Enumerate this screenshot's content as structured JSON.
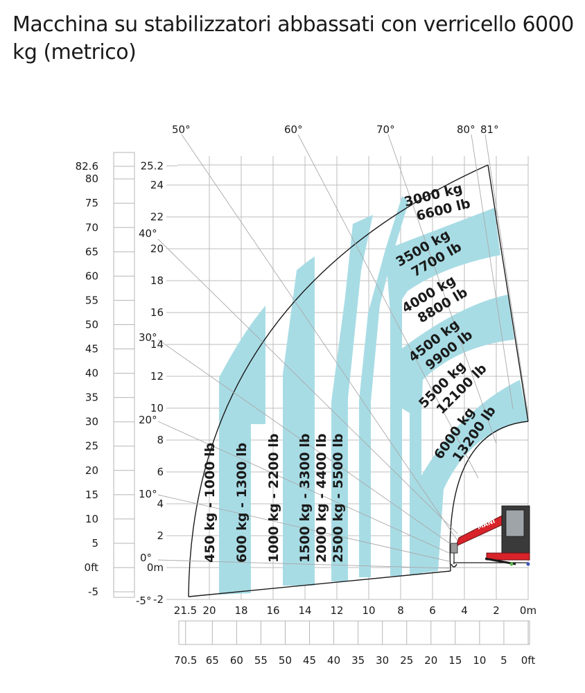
{
  "title": "Macchina su stabilizzatori abbassati con verricello 6000 kg (metrico)",
  "colors": {
    "band": "#a8dce5",
    "outline": "#1a1a1a",
    "grid": "#bcbcbc",
    "ray": "#a9a9a9",
    "machine": "#d8232a"
  },
  "height_axis_m": {
    "labels": [
      "25.2",
      "24",
      "22",
      "20",
      "18",
      "16",
      "14",
      "12",
      "10",
      "8",
      "6",
      "4",
      "2",
      "0m",
      "-2"
    ],
    "values": [
      25.2,
      24,
      22,
      20,
      18,
      16,
      14,
      12,
      10,
      8,
      6,
      4,
      2,
      0,
      -2
    ]
  },
  "height_axis_ft": {
    "labels": [
      "82.6",
      "80",
      "75",
      "70",
      "65",
      "60",
      "55",
      "50",
      "45",
      "40",
      "35",
      "30",
      "25",
      "20",
      "15",
      "10",
      "5",
      "0ft",
      "-5"
    ],
    "values": [
      82.6,
      80,
      75,
      70,
      65,
      60,
      55,
      50,
      45,
      40,
      35,
      30,
      25,
      20,
      15,
      10,
      5,
      0,
      -5
    ]
  },
  "reach_axis_m": {
    "labels": [
      "21.5",
      "20",
      "18",
      "16",
      "14",
      "12",
      "10",
      "8",
      "6",
      "4",
      "2",
      "0m"
    ],
    "values": [
      21.5,
      20,
      18,
      16,
      14,
      12,
      10,
      8,
      6,
      4,
      2,
      0
    ]
  },
  "reach_axis_ft": {
    "labels": [
      "70.5",
      "65",
      "60",
      "55",
      "50",
      "45",
      "40",
      "35",
      "30",
      "25",
      "20",
      "15",
      "10",
      "5",
      "0ft"
    ],
    "values": [
      70.5,
      65,
      60,
      55,
      50,
      45,
      40,
      35,
      30,
      25,
      20,
      15,
      10,
      5,
      0
    ]
  },
  "angle_labels_left": [
    "40°",
    "30°",
    "20°",
    "10°",
    "0°",
    "-5°"
  ],
  "angle_labels_top": [
    "50°",
    "60°",
    "70°",
    "80°",
    "81°"
  ],
  "load_bands_vertical": [
    {
      "label": "450 kg - 1000 lb",
      "kg": 450,
      "lb": 1000
    },
    {
      "label": "600 kg - 1300 lb",
      "kg": 600,
      "lb": 1300
    },
    {
      "label": "1000 kg - 2200 lb",
      "kg": 1000,
      "lb": 2200
    },
    {
      "label": "1500 kg - 3300 lb",
      "kg": 1500,
      "lb": 3300
    },
    {
      "label": "2000 kg - 4400 lb",
      "kg": 2000,
      "lb": 4400
    },
    {
      "label": "2500 kg - 5500 lb",
      "kg": 2500,
      "lb": 5500
    }
  ],
  "load_bands_arc": [
    {
      "kg": "3000 kg",
      "lb": "6600 lb"
    },
    {
      "kg": "3500 kg",
      "lb": "7700 lb"
    },
    {
      "kg": "4000 kg",
      "lb": "8800 lb"
    },
    {
      "kg": "4500 kg",
      "lb": "9900 lb"
    },
    {
      "kg": "5500 kg",
      "lb": "12100 lb"
    },
    {
      "kg": "6000 kg",
      "lb": "13200 lb"
    }
  ],
  "machine_brand": "MANI"
}
